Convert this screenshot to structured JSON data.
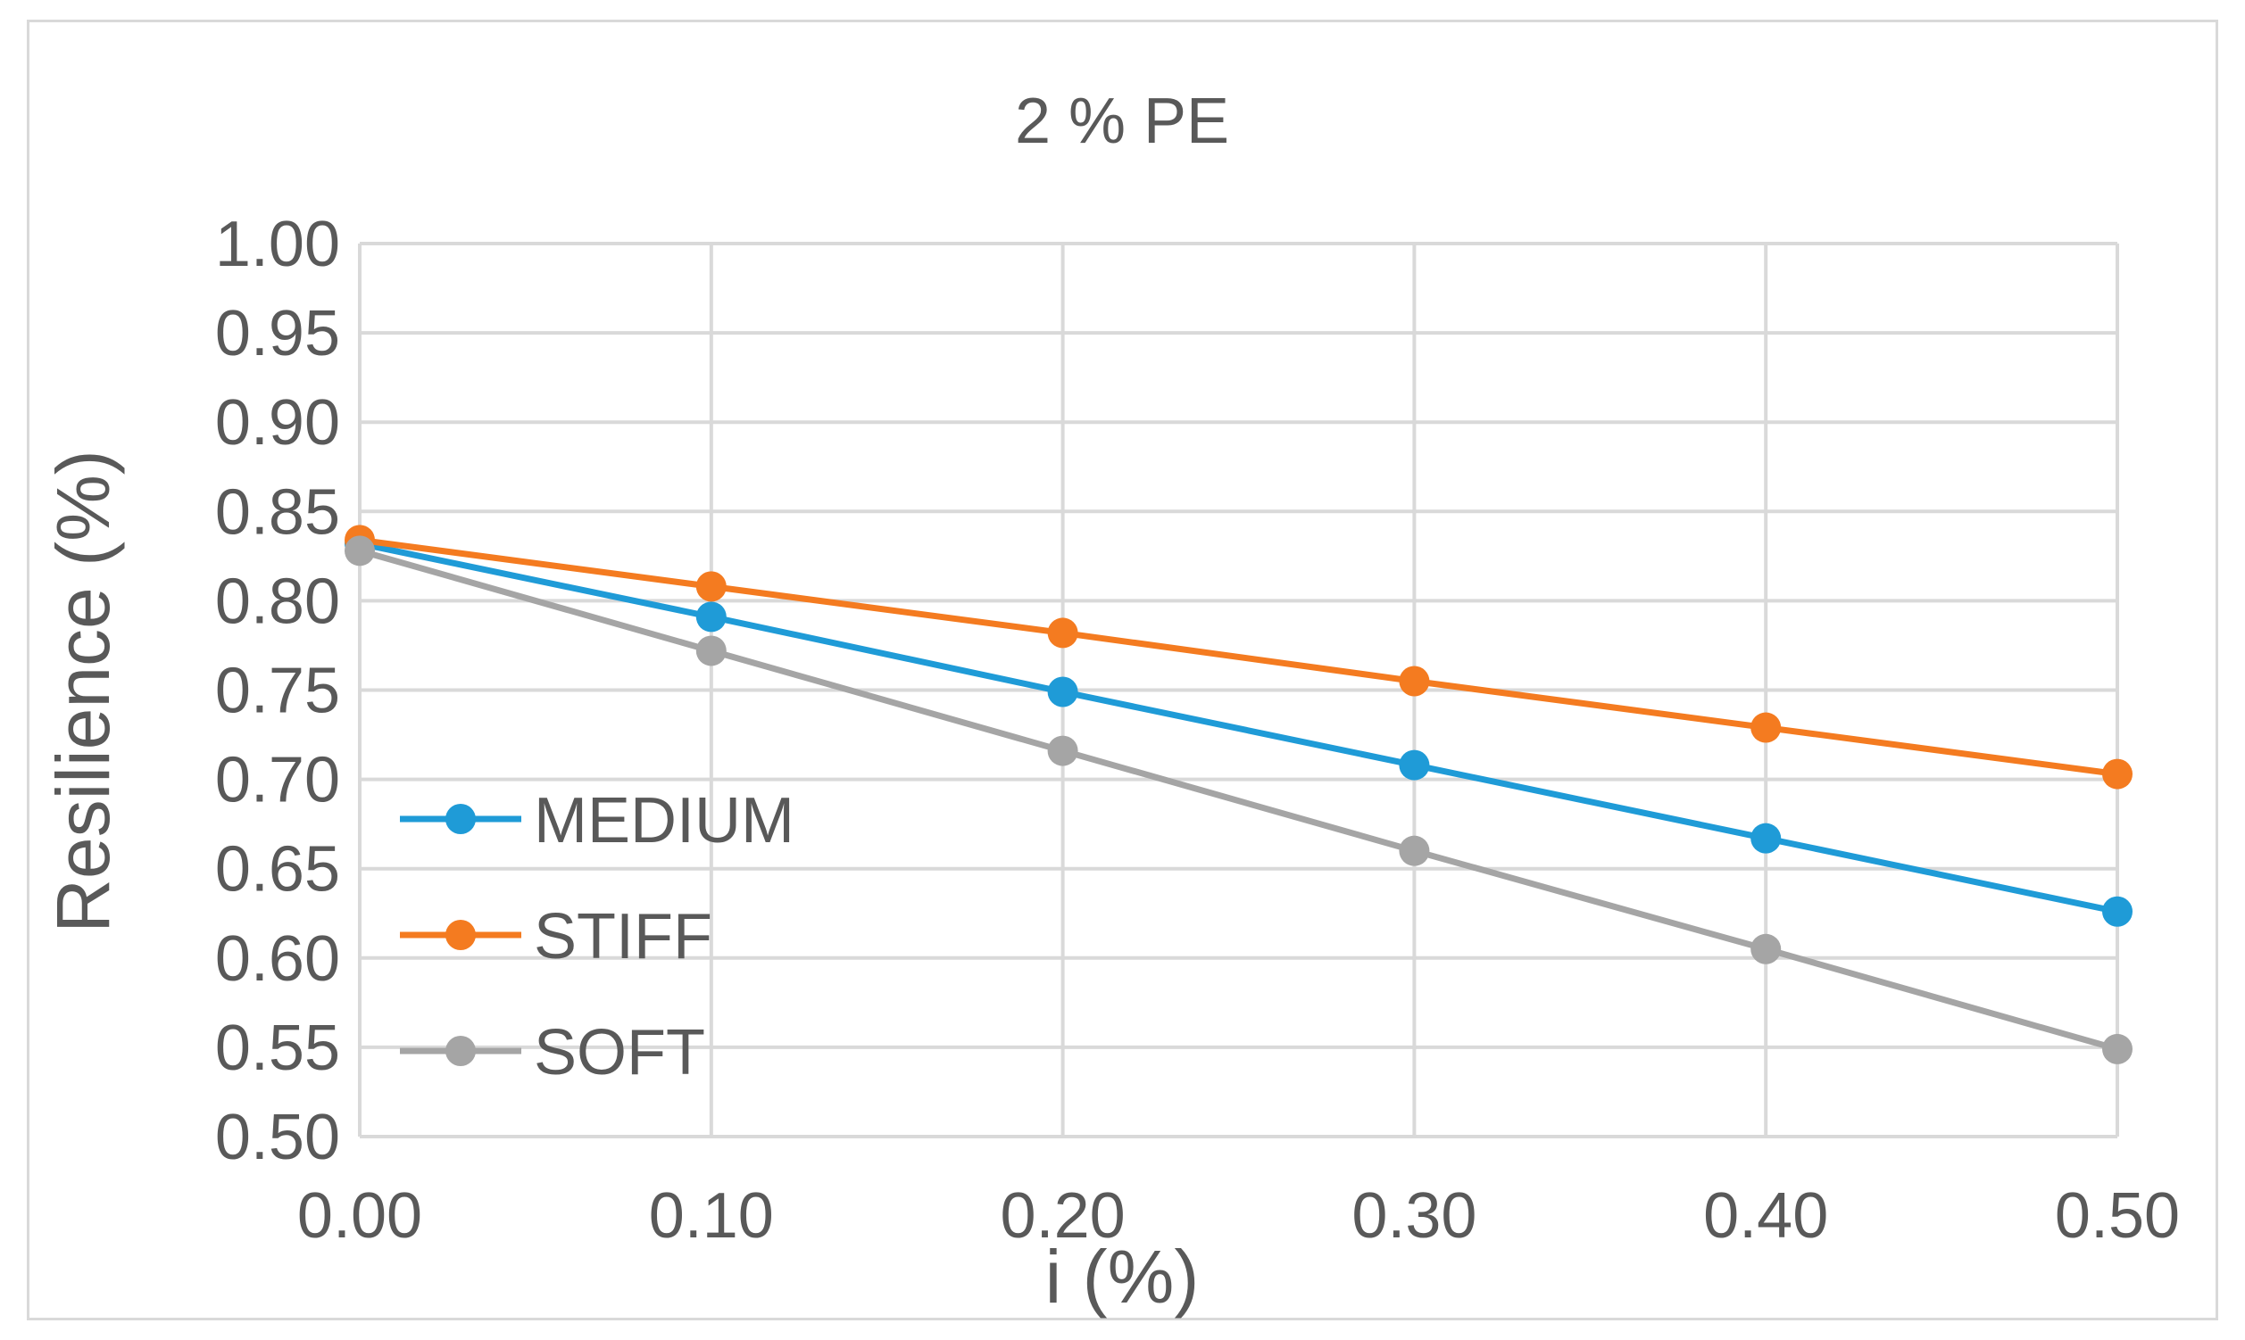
{
  "chart_data": {
    "type": "line",
    "title": "2 % PE",
    "xlabel": "i (%)",
    "ylabel": "Resilience (%)",
    "x": [
      0.0,
      0.1,
      0.2,
      0.3,
      0.4,
      0.5
    ],
    "x_tick_labels": [
      "0.00",
      "0.10",
      "0.20",
      "0.30",
      "0.40",
      "0.50"
    ],
    "y_tick_values": [
      0.5,
      0.55,
      0.6,
      0.65,
      0.7,
      0.75,
      0.8,
      0.85,
      0.9,
      0.95,
      1.0
    ],
    "y_tick_labels": [
      "0.50",
      "0.55",
      "0.60",
      "0.65",
      "0.70",
      "0.75",
      "0.80",
      "0.85",
      "0.90",
      "0.95",
      "1.00"
    ],
    "xlim": [
      0.0,
      0.5
    ],
    "ylim": [
      0.5,
      1.0
    ],
    "grid": true,
    "legend_position": "left-middle",
    "series": [
      {
        "name": "MEDIUM",
        "color": "#1f9bd7",
        "values": [
          0.832,
          0.791,
          0.749,
          0.708,
          0.667,
          0.626
        ]
      },
      {
        "name": "STIFF",
        "color": "#f47b20",
        "values": [
          0.834,
          0.808,
          0.782,
          0.755,
          0.729,
          0.703
        ]
      },
      {
        "name": "SOFT",
        "color": "#a5a5a5",
        "values": [
          0.828,
          0.772,
          0.716,
          0.66,
          0.605,
          0.549
        ]
      }
    ]
  },
  "colors": {
    "grid": "#d9d9d9",
    "text": "#595959",
    "border": "#d9d9d9"
  }
}
